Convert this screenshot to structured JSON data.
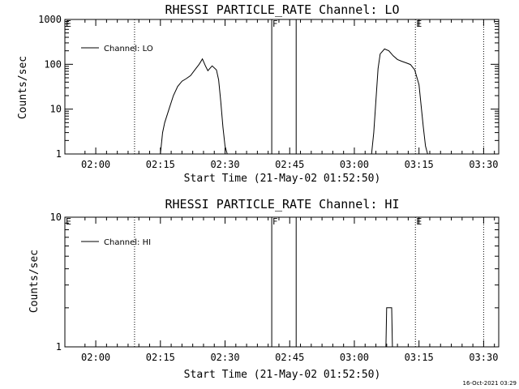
{
  "chart_data": [
    {
      "type": "line",
      "title": "RHESSI PARTICLE_RATE Channel: LO",
      "xlabel": "Start Time (21-May-02 01:52:50)",
      "ylabel": "Counts/sec",
      "yscale": "log",
      "ylim": [
        1,
        1000
      ],
      "ytick_labels": [
        "1",
        "10",
        "100",
        "1000"
      ],
      "xlim": [
        "01:52:50",
        "03:33:30"
      ],
      "xtick_labels": [
        "02:00",
        "02:15",
        "02:30",
        "02:45",
        "03:00",
        "03:15",
        "03:30"
      ],
      "legend": "top-left",
      "grid": false,
      "color": "#000000",
      "series": [
        {
          "name": "Channel: LO",
          "x": [
            "02:15:00",
            "02:15:30",
            "02:16:00",
            "02:17:00",
            "02:18:00",
            "02:19:00",
            "02:20:00",
            "02:21:00",
            "02:22:00",
            "02:23:00",
            "02:24:00",
            "02:24:45",
            "02:25:30",
            "02:26:00",
            "02:27:00",
            "02:28:00",
            "02:28:30",
            "02:29:00",
            "02:29:30",
            "02:30:00",
            "02:30:30",
            "03:04:00",
            "03:04:30",
            "03:05:00",
            "03:05:30",
            "03:06:00",
            "03:07:00",
            "03:08:00",
            "03:09:00",
            "03:10:00",
            "03:11:00",
            "03:12:00",
            "03:13:00",
            "03:14:00",
            "03:15:00",
            "03:15:30",
            "03:16:00",
            "03:16:30",
            "03:17:00"
          ],
          "values": [
            1,
            3,
            5,
            10,
            20,
            32,
            42,
            48,
            56,
            75,
            100,
            132,
            90,
            72,
            92,
            75,
            45,
            15,
            4,
            1.5,
            1,
            1,
            3,
            15,
            80,
            170,
            220,
            200,
            155,
            128,
            117,
            108,
            99,
            75,
            35,
            12,
            4,
            1.5,
            1
          ]
        }
      ],
      "markers": [
        {
          "label": "E",
          "time": "01:52:50",
          "style": "dotted"
        },
        {
          "time": "02:09:00",
          "style": "dotted"
        },
        {
          "label": "F",
          "time": "02:40:50",
          "style": "solid"
        },
        {
          "time": "02:46:30",
          "style": "solid"
        },
        {
          "label": "E",
          "time": "03:14:10",
          "style": "dotted"
        },
        {
          "time": "03:30:00",
          "style": "dotted"
        }
      ]
    },
    {
      "type": "line",
      "title": "RHESSI PARTICLE_RATE Channel: HI",
      "xlabel": "Start Time (21-May-02 01:52:50)",
      "ylabel": "Counts/sec",
      "yscale": "log",
      "ylim": [
        1,
        10
      ],
      "ytick_labels": [
        "1",
        "10"
      ],
      "xlim": [
        "01:52:50",
        "03:33:30"
      ],
      "xtick_labels": [
        "02:00",
        "02:15",
        "02:30",
        "02:45",
        "03:00",
        "03:15",
        "03:30"
      ],
      "legend": "top-left",
      "grid": false,
      "color": "#000000",
      "series": [
        {
          "name": "Channel: HI",
          "x": [
            "03:07:20",
            "03:07:30",
            "03:08:40",
            "03:08:50"
          ],
          "values": [
            1,
            2,
            2,
            1
          ]
        }
      ],
      "markers": [
        {
          "label": "E",
          "time": "01:52:50",
          "style": "dotted"
        },
        {
          "time": "02:09:00",
          "style": "dotted"
        },
        {
          "label": "F",
          "time": "02:40:50",
          "style": "solid"
        },
        {
          "time": "02:46:30",
          "style": "solid"
        },
        {
          "label": "E",
          "time": "03:14:10",
          "style": "dotted"
        },
        {
          "time": "03:30:00",
          "style": "dotted"
        }
      ]
    }
  ],
  "timestamp": "16-Oct-2021 03:29"
}
